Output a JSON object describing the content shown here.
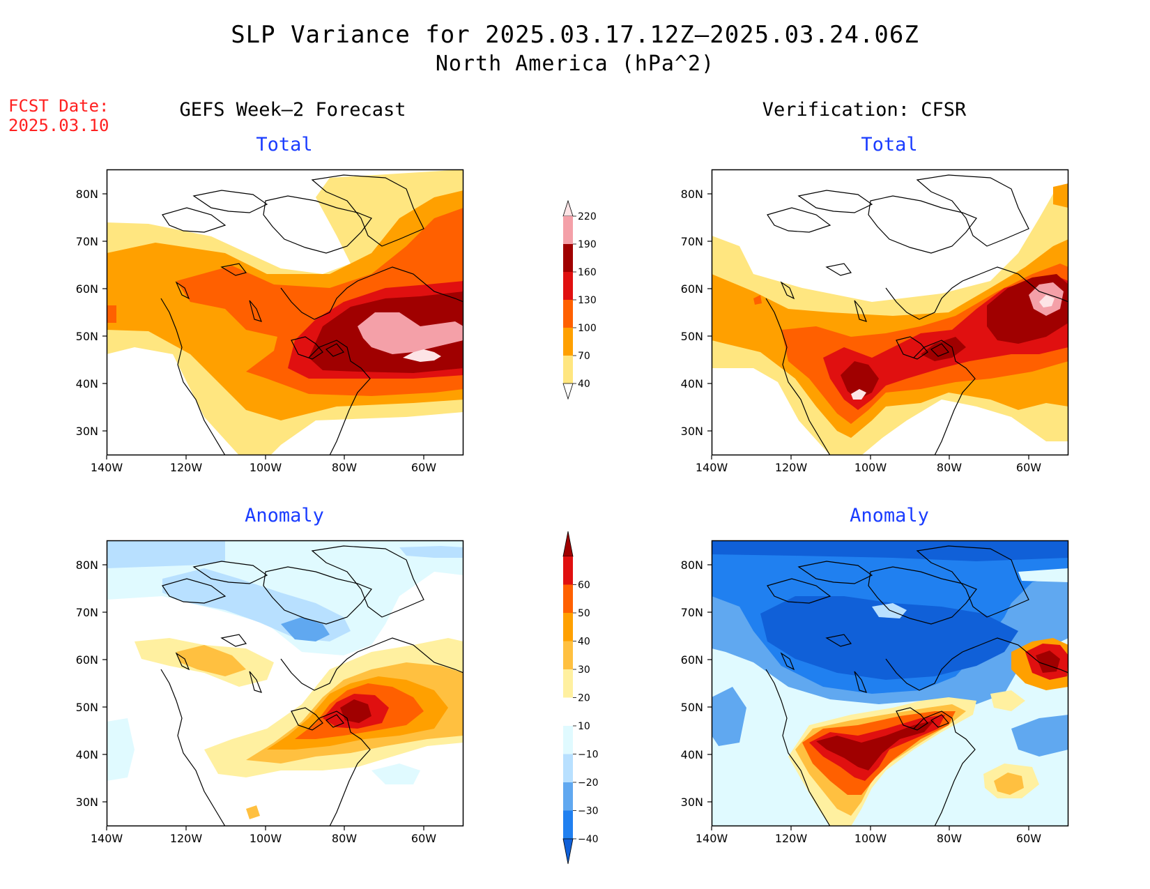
{
  "header": {
    "title": "SLP Variance for 2025.03.17.12Z–2025.03.24.06Z",
    "subtitle": "North America (hPa^2)",
    "fcst_line1": "FCST Date:",
    "fcst_line2": "2025.03.10"
  },
  "columns": {
    "left": "GEFS Week–2 Forecast",
    "right": "Verification: CFSR"
  },
  "panels": {
    "forecast_total": "Total",
    "verification_total": "Total",
    "forecast_anomaly": "Anomaly",
    "verification_anomaly": "Anomaly"
  },
  "axes": {
    "lat_labels": [
      "80N",
      "70N",
      "60N",
      "50N",
      "40N",
      "30N"
    ],
    "lon_labels": [
      "140W",
      "120W",
      "100W",
      "80W",
      "60W"
    ]
  },
  "colorbars": {
    "total": {
      "levels": [
        "40",
        "70",
        "100",
        "130",
        "160",
        "190",
        "220"
      ],
      "colors": [
        "#ffffff",
        "#ffe680",
        "#ffa000",
        "#ff6000",
        "#e01010",
        "#a00000",
        "#f4a0a8",
        "#fde4e6"
      ]
    },
    "anomaly": {
      "levels": [
        "−40",
        "−30",
        "−20",
        "−10",
        "10",
        "20",
        "30",
        "40",
        "50",
        "60"
      ],
      "colors": [
        "#1060d8",
        "#2080f0",
        "#60a8f0",
        "#b8e0ff",
        "#e0faff",
        "#ffffff",
        "#fff0a0",
        "#ffc040",
        "#ffa000",
        "#ff6000",
        "#e01010",
        "#a00000"
      ]
    }
  }
}
